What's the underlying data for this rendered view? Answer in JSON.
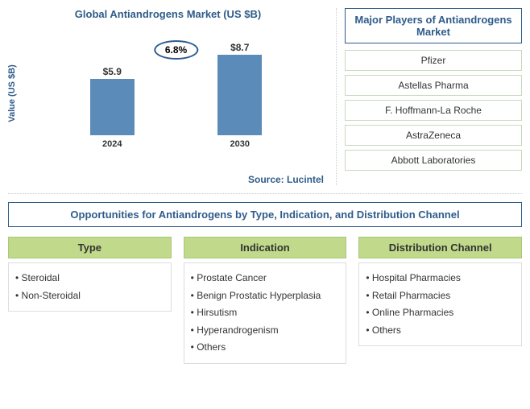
{
  "chart": {
    "title": "Global Antiandrogens Market (US $B)",
    "y_axis_label": "Value (US $B)",
    "source": "Source: Lucintel",
    "growth_rate": "6.8%",
    "bars": [
      {
        "year": "2024",
        "value": "$5.9",
        "height": 70
      },
      {
        "year": "2030",
        "value": "$8.7",
        "height": 100
      }
    ],
    "bar_color": "#5b8bb8",
    "title_color": "#2e5c8a"
  },
  "players": {
    "header": "Major Players of Antiandrogens Market",
    "items": [
      "Pfizer",
      "Astellas Pharma",
      "F. Hoffmann-La Roche",
      "AstraZeneca",
      "Abbott Laboratories"
    ]
  },
  "opportunities": {
    "header": "Opportunities for Antiandrogens by Type, Indication, and Distribution Channel",
    "categories": [
      {
        "name": "Type",
        "items": [
          "Steroidal",
          "Non-Steroidal"
        ]
      },
      {
        "name": "Indication",
        "items": [
          "Prostate Cancer",
          "Benign Prostatic Hyperplasia",
          "Hirsutism",
          "Hyperandrogenism",
          "Others"
        ]
      },
      {
        "name": "Distribution Channel",
        "items": [
          "Hospital Pharmacies",
          "Retail Pharmacies",
          "Online Pharmacies",
          "Others"
        ]
      }
    ]
  }
}
